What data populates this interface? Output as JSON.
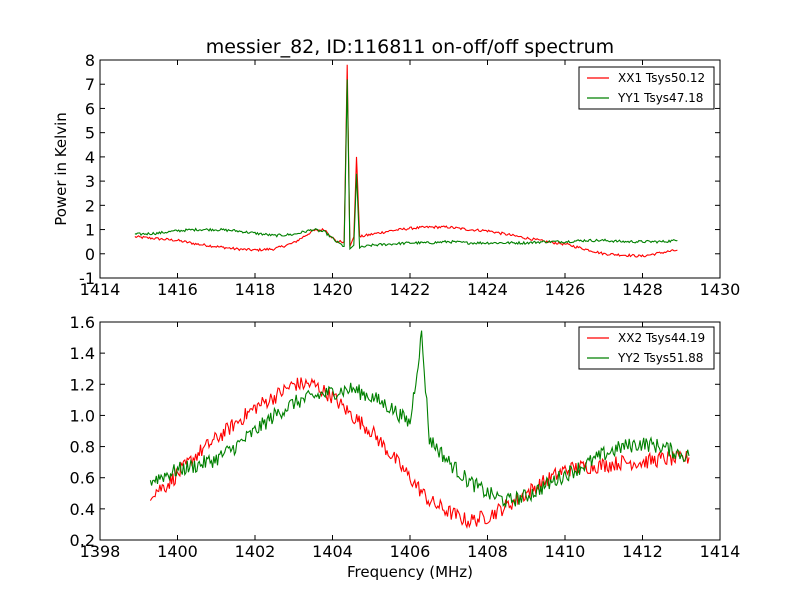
{
  "chart_data": [
    {
      "type": "line",
      "title": "messier_82, ID:116811 on-off/off spectrum",
      "xlabel": "",
      "ylabel": "Power in Kelvin",
      "xlim": [
        1414,
        1430
      ],
      "ylim": [
        -1,
        8
      ],
      "xticks": [
        1414,
        1416,
        1418,
        1420,
        1422,
        1424,
        1426,
        1428,
        1430
      ],
      "yticks": [
        -1,
        0,
        1,
        2,
        3,
        4,
        5,
        6,
        7,
        8
      ],
      "grid": false,
      "legend_position": "top-right",
      "series": [
        {
          "name": "XX1 Tsys50.12",
          "color": "#ff0000",
          "points": [
            [
              1414.9,
              0.7
            ],
            [
              1415.5,
              0.62
            ],
            [
              1416.0,
              0.55
            ],
            [
              1416.5,
              0.4
            ],
            [
              1417.0,
              0.3
            ],
            [
              1417.5,
              0.2
            ],
            [
              1418.0,
              0.15
            ],
            [
              1418.5,
              0.2
            ],
            [
              1419.0,
              0.45
            ],
            [
              1419.5,
              0.95
            ],
            [
              1419.8,
              1.0
            ],
            [
              1420.1,
              0.5
            ],
            [
              1420.3,
              0.5
            ],
            [
              1420.38,
              7.8
            ],
            [
              1420.45,
              0.3
            ],
            [
              1420.55,
              0.7
            ],
            [
              1420.62,
              4.0
            ],
            [
              1420.7,
              0.7
            ],
            [
              1421.0,
              0.8
            ],
            [
              1421.5,
              0.95
            ],
            [
              1422.0,
              1.05
            ],
            [
              1422.5,
              1.1
            ],
            [
              1423.0,
              1.1
            ],
            [
              1423.5,
              1.0
            ],
            [
              1424.0,
              0.95
            ],
            [
              1424.5,
              0.8
            ],
            [
              1425.0,
              0.65
            ],
            [
              1425.5,
              0.5
            ],
            [
              1426.0,
              0.4
            ],
            [
              1426.5,
              0.2
            ],
            [
              1427.0,
              0.0
            ],
            [
              1427.5,
              -0.05
            ],
            [
              1428.0,
              -0.1
            ],
            [
              1428.5,
              0.05
            ],
            [
              1428.9,
              0.15
            ]
          ]
        },
        {
          "name": "YY1 Tsys47.18",
          "color": "#008000",
          "points": [
            [
              1414.9,
              0.8
            ],
            [
              1415.5,
              0.85
            ],
            [
              1416.0,
              0.95
            ],
            [
              1416.5,
              1.0
            ],
            [
              1417.0,
              1.0
            ],
            [
              1417.5,
              0.95
            ],
            [
              1418.0,
              0.85
            ],
            [
              1418.5,
              0.75
            ],
            [
              1419.0,
              0.8
            ],
            [
              1419.5,
              1.0
            ],
            [
              1419.8,
              0.9
            ],
            [
              1420.1,
              0.5
            ],
            [
              1420.3,
              0.3
            ],
            [
              1420.38,
              7.2
            ],
            [
              1420.45,
              0.2
            ],
            [
              1420.55,
              0.35
            ],
            [
              1420.62,
              3.3
            ],
            [
              1420.7,
              0.25
            ],
            [
              1421.0,
              0.35
            ],
            [
              1421.5,
              0.4
            ],
            [
              1422.0,
              0.45
            ],
            [
              1422.5,
              0.45
            ],
            [
              1423.0,
              0.5
            ],
            [
              1423.5,
              0.45
            ],
            [
              1424.0,
              0.45
            ],
            [
              1424.5,
              0.45
            ],
            [
              1425.0,
              0.45
            ],
            [
              1425.5,
              0.5
            ],
            [
              1426.0,
              0.5
            ],
            [
              1426.5,
              0.55
            ],
            [
              1427.0,
              0.55
            ],
            [
              1427.5,
              0.5
            ],
            [
              1428.0,
              0.5
            ],
            [
              1428.5,
              0.5
            ],
            [
              1428.9,
              0.55
            ]
          ]
        }
      ]
    },
    {
      "type": "line",
      "title": "",
      "xlabel": "Frequency (MHz)",
      "ylabel": "",
      "xlim": [
        1398,
        1414
      ],
      "ylim": [
        0.2,
        1.6
      ],
      "xticks": [
        1398,
        1400,
        1402,
        1404,
        1406,
        1408,
        1410,
        1412,
        1414
      ],
      "yticks": [
        "0.2",
        "0.4",
        "0.6",
        "0.8",
        "1.0",
        "1.2",
        "1.4",
        "1.6"
      ],
      "grid": false,
      "legend_position": "top-right",
      "series": [
        {
          "name": "XX2 Tsys44.19",
          "color": "#ff0000",
          "points": [
            [
              1399.3,
              0.5
            ],
            [
              1399.7,
              0.55
            ],
            [
              1400.0,
              0.62
            ],
            [
              1400.5,
              0.75
            ],
            [
              1401.0,
              0.85
            ],
            [
              1401.5,
              0.95
            ],
            [
              1402.0,
              1.05
            ],
            [
              1402.5,
              1.12
            ],
            [
              1403.0,
              1.2
            ],
            [
              1403.5,
              1.2
            ],
            [
              1404.0,
              1.12
            ],
            [
              1404.5,
              1.0
            ],
            [
              1405.0,
              0.9
            ],
            [
              1405.5,
              0.75
            ],
            [
              1406.0,
              0.6
            ],
            [
              1406.5,
              0.45
            ],
            [
              1407.0,
              0.38
            ],
            [
              1407.5,
              0.32
            ],
            [
              1408.0,
              0.35
            ],
            [
              1408.5,
              0.42
            ],
            [
              1409.0,
              0.5
            ],
            [
              1409.5,
              0.58
            ],
            [
              1410.0,
              0.65
            ],
            [
              1410.5,
              0.67
            ],
            [
              1411.0,
              0.68
            ],
            [
              1411.5,
              0.7
            ],
            [
              1412.0,
              0.7
            ],
            [
              1412.5,
              0.72
            ],
            [
              1413.0,
              0.72
            ],
            [
              1413.2,
              0.73
            ]
          ]
        },
        {
          "name": "YY2 Tsys51.88",
          "color": "#008000",
          "points": [
            [
              1399.3,
              0.58
            ],
            [
              1399.7,
              0.62
            ],
            [
              1400.0,
              0.65
            ],
            [
              1400.5,
              0.68
            ],
            [
              1401.0,
              0.72
            ],
            [
              1401.5,
              0.8
            ],
            [
              1402.0,
              0.9
            ],
            [
              1402.5,
              1.0
            ],
            [
              1403.0,
              1.08
            ],
            [
              1403.5,
              1.12
            ],
            [
              1404.0,
              1.15
            ],
            [
              1404.5,
              1.17
            ],
            [
              1405.0,
              1.12
            ],
            [
              1405.5,
              1.05
            ],
            [
              1406.0,
              0.95
            ],
            [
              1406.3,
              1.52
            ],
            [
              1406.5,
              0.85
            ],
            [
              1407.0,
              0.7
            ],
            [
              1407.5,
              0.58
            ],
            [
              1408.0,
              0.5
            ],
            [
              1408.5,
              0.45
            ],
            [
              1409.0,
              0.48
            ],
            [
              1409.5,
              0.55
            ],
            [
              1410.0,
              0.62
            ],
            [
              1410.5,
              0.68
            ],
            [
              1411.0,
              0.75
            ],
            [
              1411.5,
              0.8
            ],
            [
              1412.0,
              0.82
            ],
            [
              1412.5,
              0.8
            ],
            [
              1413.0,
              0.75
            ],
            [
              1413.2,
              0.74
            ]
          ]
        }
      ]
    }
  ]
}
